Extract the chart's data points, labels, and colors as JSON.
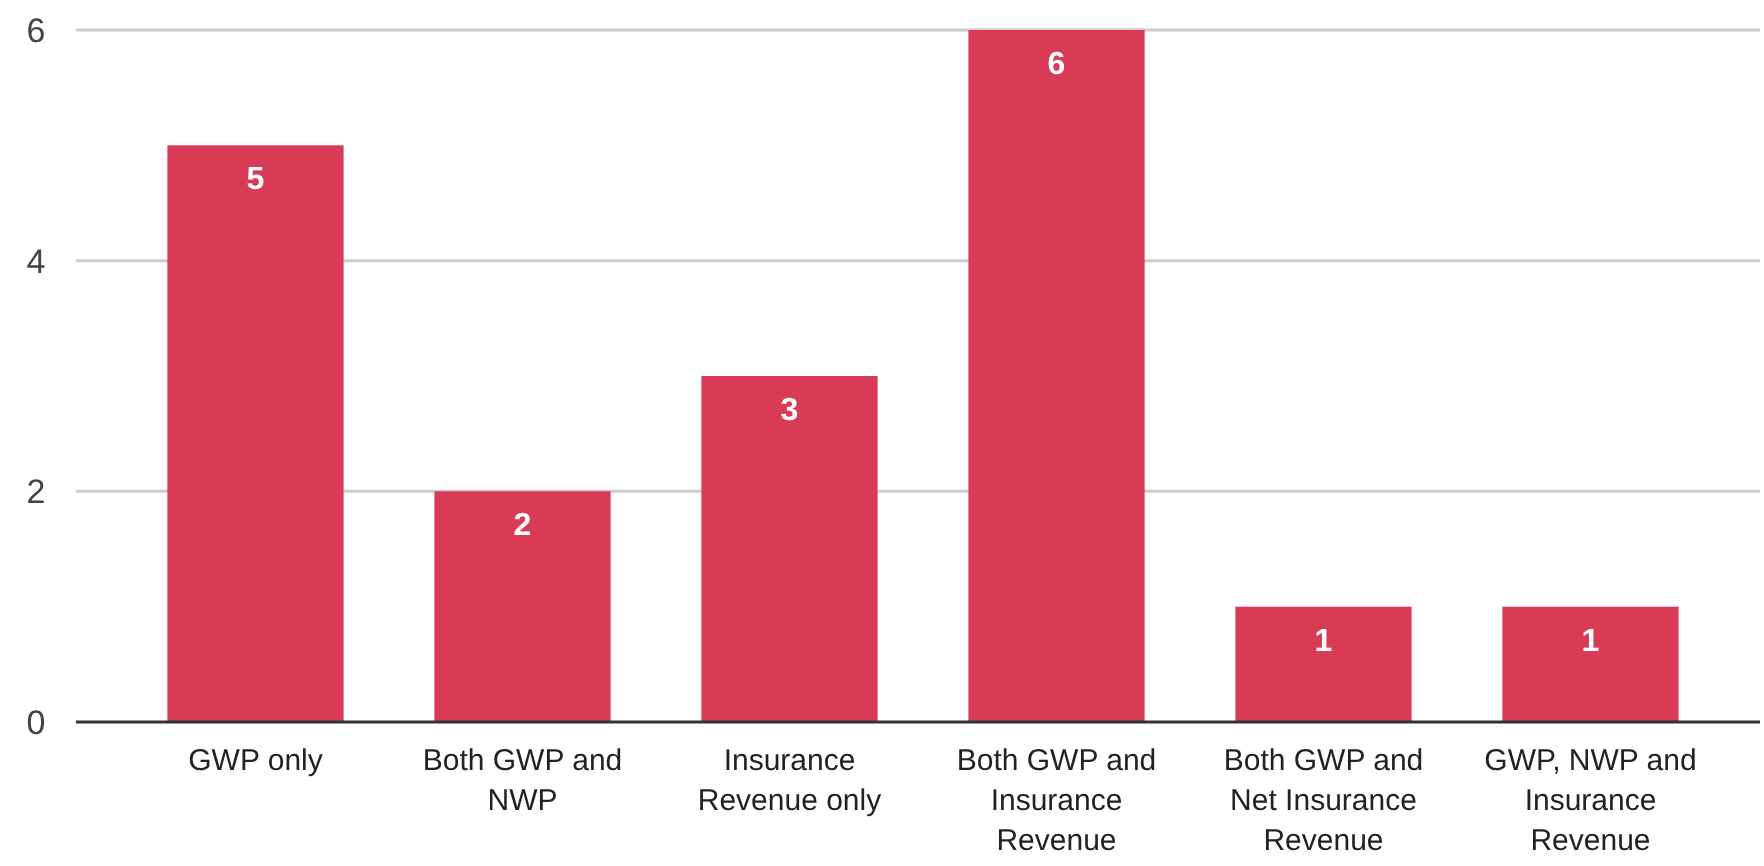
{
  "chart_data": {
    "type": "bar",
    "categories": [
      "GWP only",
      "Both GWP and NWP",
      "Insurance Revenue only",
      "Both GWP and Insurance Revenue",
      "Both GWP and Net Insurance Revenue",
      "GWP, NWP and Insurance Revenue"
    ],
    "values": [
      5,
      2,
      3,
      6,
      1,
      1
    ],
    "color": "#d93a56",
    "ylim": [
      0,
      6
    ],
    "yticks": [
      0,
      2,
      4,
      6
    ],
    "grid": "y",
    "data_labels": true
  }
}
